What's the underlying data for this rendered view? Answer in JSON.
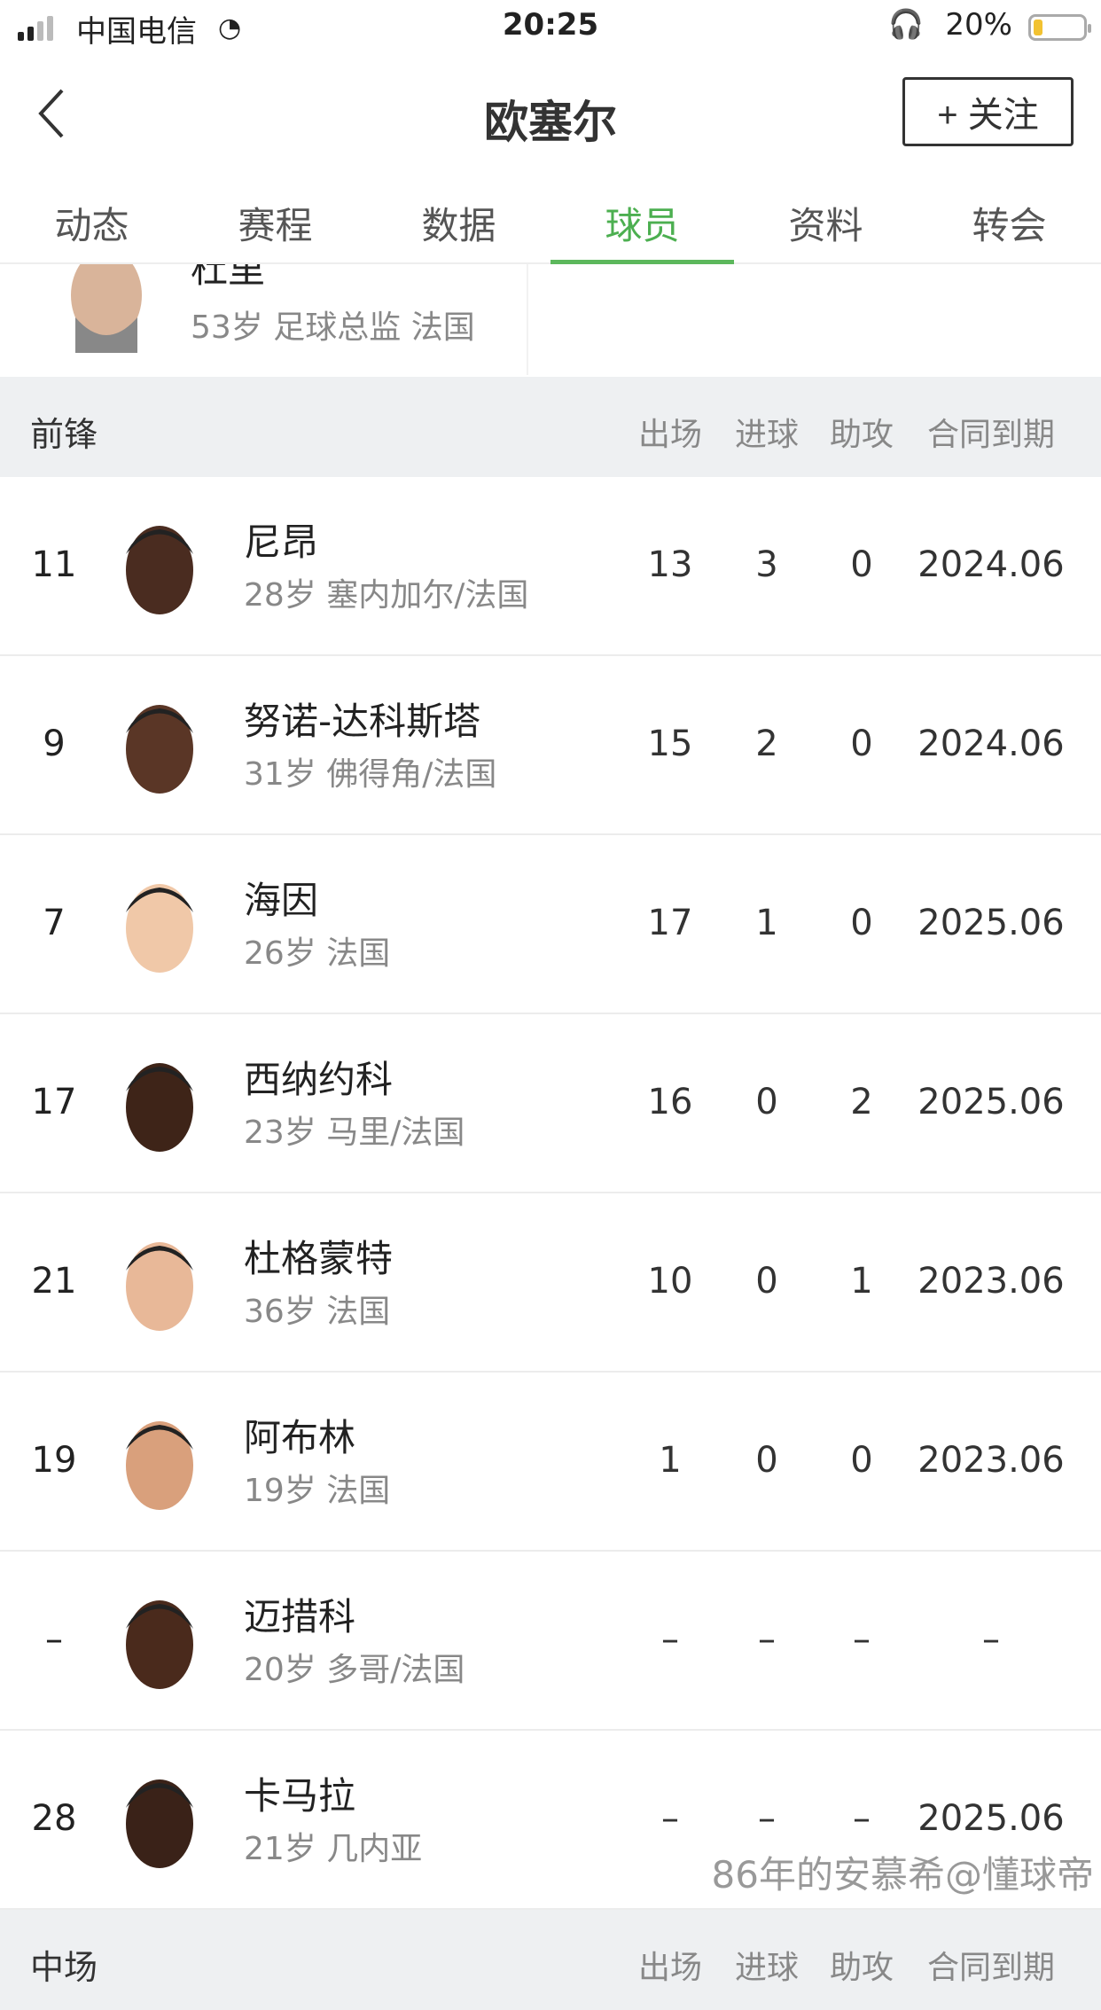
{
  "status_bar": {
    "carrier": "中国电信",
    "time": "20:25",
    "battery": "20%"
  },
  "header": {
    "title": "欧塞尔",
    "follow_label": "+ 关注"
  },
  "tabs": [
    {
      "label": "动态"
    },
    {
      "label": "赛程"
    },
    {
      "label": "数据"
    },
    {
      "label": "球员",
      "active": true
    },
    {
      "label": "资料"
    },
    {
      "label": "转会"
    }
  ],
  "staff": {
    "name": "杜里",
    "info": "53岁 足球总监 法国"
  },
  "sections": [
    {
      "label": "前锋",
      "columns": [
        "出场",
        "进球",
        "助攻",
        "合同到期"
      ],
      "players": [
        {
          "number": "11",
          "name": "尼昂",
          "info": "28岁 塞内加尔/法国",
          "apps": "13",
          "goals": "3",
          "assists": "0",
          "contract": "2024.06",
          "skin": "#4a2c20"
        },
        {
          "number": "9",
          "name": "努诺-达科斯塔",
          "info": "31岁 佛得角/法国",
          "apps": "15",
          "goals": "2",
          "assists": "0",
          "contract": "2024.06",
          "skin": "#5a3626"
        },
        {
          "number": "7",
          "name": "海因",
          "info": "26岁 法国",
          "apps": "17",
          "goals": "1",
          "assists": "0",
          "contract": "2025.06",
          "skin": "#f0c8a8"
        },
        {
          "number": "17",
          "name": "西纳约科",
          "info": "23岁 马里/法国",
          "apps": "16",
          "goals": "0",
          "assists": "2",
          "contract": "2025.06",
          "skin": "#3e2418"
        },
        {
          "number": "21",
          "name": "杜格蒙特",
          "info": "36岁 法国",
          "apps": "10",
          "goals": "0",
          "assists": "1",
          "contract": "2023.06",
          "skin": "#e8b898"
        },
        {
          "number": "19",
          "name": "阿布林",
          "info": "19岁 法国",
          "apps": "1",
          "goals": "0",
          "assists": "0",
          "contract": "2023.06",
          "skin": "#d9a07c"
        },
        {
          "number": "–",
          "name": "迈措科",
          "info": "20岁 多哥/法国",
          "apps": "–",
          "goals": "–",
          "assists": "–",
          "contract": "–",
          "skin": "#4a2a1c"
        },
        {
          "number": "28",
          "name": "卡马拉",
          "info": "21岁 几内亚",
          "apps": "–",
          "goals": "–",
          "assists": "–",
          "contract": "2025.06",
          "skin": "#3a2218"
        }
      ]
    },
    {
      "label": "中场",
      "columns": [
        "出场",
        "进球",
        "助攻",
        "合同到期"
      ]
    }
  ],
  "watermark": "86年的安慕希@懂球帝",
  "colors": {
    "accent": "#4caf50",
    "section_bg": "#eef0f2"
  }
}
